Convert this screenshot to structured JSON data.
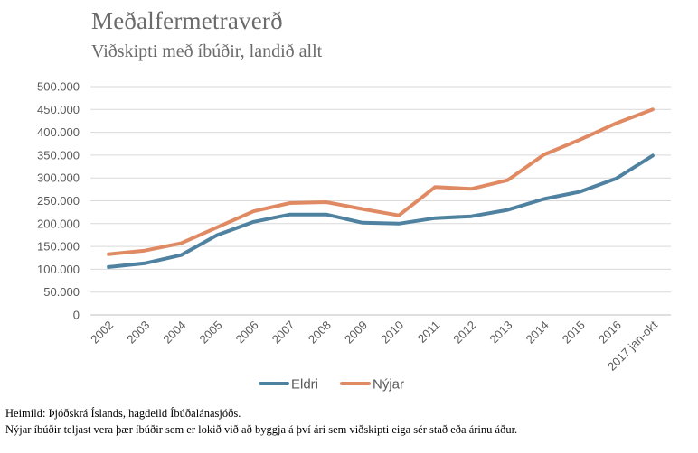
{
  "title": "Meðalfermetraverð",
  "subtitle": "Viðskipti með íbúðir, landið allt",
  "footnotes": {
    "source": "Heimild: Þjóðskrá Íslands, hagdeild Íbúðalánasjóðs.",
    "note": "Nýjar íbúðir teljast vera þær íbúðir sem er lokið við að byggja á því ári sem viðskipti eiga sér stað eða árinu áður."
  },
  "chart_data": {
    "type": "line",
    "title": "Meðalfermetraverð",
    "subtitle": "Viðskipti með íbúðir, landið allt",
    "xlabel": "",
    "ylabel": "",
    "categories": [
      "2002",
      "2003",
      "2004",
      "2005",
      "2006",
      "2007",
      "2008",
      "2009",
      "2010",
      "2011",
      "2012",
      "2013",
      "2014",
      "2015",
      "2016",
      "2017 jan-okt"
    ],
    "ylim": [
      0,
      500000
    ],
    "yticks": [
      0,
      50000,
      100000,
      150000,
      200000,
      250000,
      300000,
      350000,
      400000,
      450000,
      500000
    ],
    "ytick_labels": [
      "0",
      "50.000",
      "100.000",
      "150.000",
      "200.000",
      "250.000",
      "300.000",
      "350.000",
      "400.000",
      "450.000",
      "500.000"
    ],
    "grid": true,
    "legend_position": "bottom",
    "series": [
      {
        "name": "Eldri",
        "color": "#4f81a0",
        "values": [
          105000,
          113000,
          131000,
          175000,
          204000,
          220000,
          220000,
          202000,
          200000,
          212000,
          216000,
          230000,
          254000,
          270000,
          299000,
          349000
        ]
      },
      {
        "name": "Nýjar",
        "color": "#e08a64",
        "values": [
          133000,
          141000,
          157000,
          192000,
          227000,
          245000,
          247000,
          232000,
          218000,
          280000,
          276000,
          295000,
          351000,
          384000,
          420000,
          450000
        ]
      }
    ]
  }
}
